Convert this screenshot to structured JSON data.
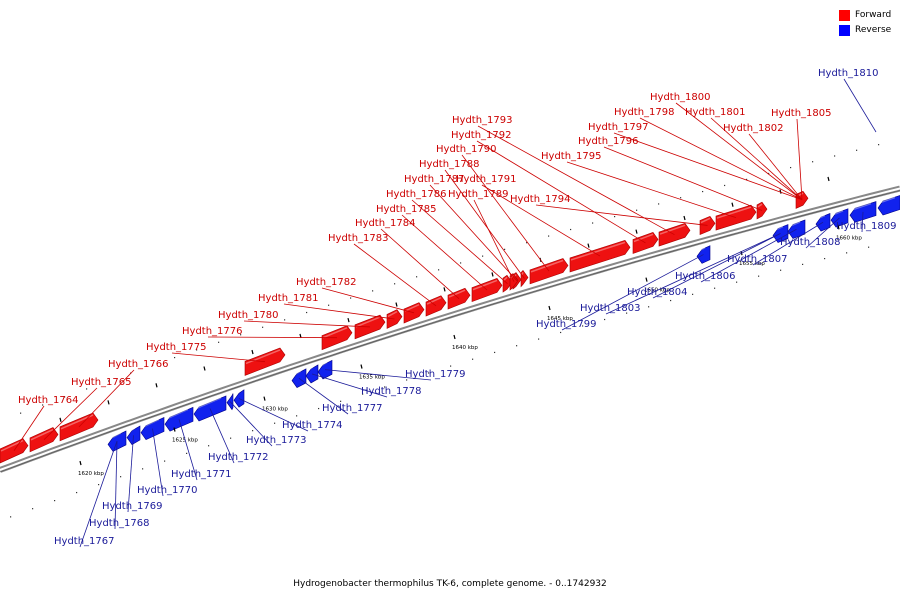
{
  "legend": {
    "forward": {
      "label": "Forward",
      "color": "#ff0000"
    },
    "reverse": {
      "label": "Reverse",
      "color": "#0000ff"
    }
  },
  "caption": "Hydrogenobacter thermophilus TK-6, complete genome. - 0..1742932",
  "colors": {
    "forward": "#ee1111",
    "reverse": "#1122ee",
    "label_forward": "#cc0000",
    "label_reverse": "#1a1a99",
    "backbone": "#555555"
  },
  "ticks": [
    "1620 kbp",
    "1625 kbp",
    "1630 kbp",
    "1635 kbp",
    "1640 kbp",
    "1645 kbp",
    "1650 kbp",
    "1655 kbp",
    "1660 kbp"
  ],
  "forward_genes": [
    "Hydth_1764",
    "Hydth_1765",
    "Hydth_1766",
    "Hydth_1775",
    "Hydth_1776",
    "Hydth_1780",
    "Hydth_1781",
    "Hydth_1782",
    "Hydth_1783",
    "Hydth_1784",
    "Hydth_1785",
    "Hydth_1786",
    "Hydth_1787",
    "Hydth_1788",
    "Hydth_1789",
    "Hydth_1790",
    "Hydth_1791",
    "Hydth_1792",
    "Hydth_1793",
    "Hydth_1794",
    "Hydth_1795",
    "Hydth_1796",
    "Hydth_1797",
    "Hydth_1798",
    "Hydth_1800",
    "Hydth_1801",
    "Hydth_1802",
    "Hydth_1805"
  ],
  "reverse_genes": [
    "Hydth_1767",
    "Hydth_1768",
    "Hydth_1769",
    "Hydth_1770",
    "Hydth_1771",
    "Hydth_1772",
    "Hydth_1773",
    "Hydth_1774",
    "Hydth_1777",
    "Hydth_1778",
    "Hydth_1779",
    "Hydth_1799",
    "Hydth_1803",
    "Hydth_1804",
    "Hydth_1806",
    "Hydth_1807",
    "Hydth_1808",
    "Hydth_1809",
    "Hydth_1810"
  ]
}
